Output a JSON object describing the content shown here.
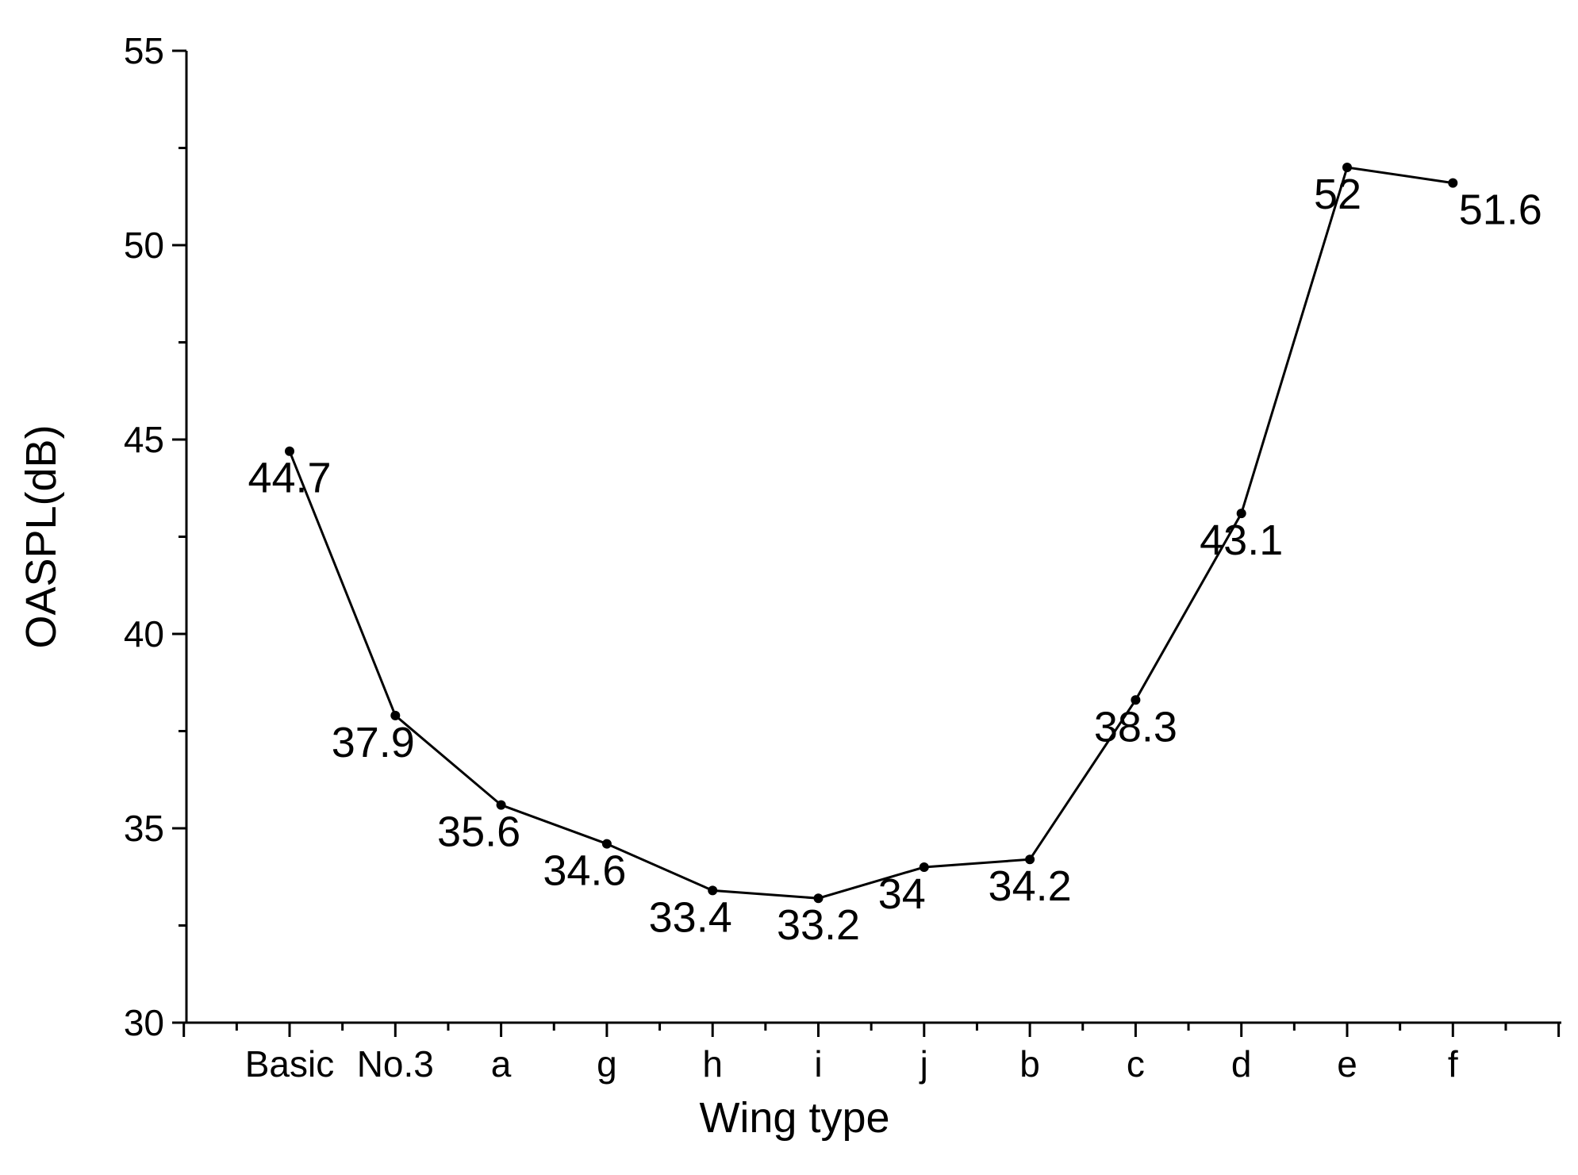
{
  "chart_data": {
    "type": "line",
    "title": "",
    "xlabel": "Wing type",
    "ylabel": "OASPL(dB)",
    "categories": [
      "Basic",
      "No.3",
      "a",
      "g",
      "h",
      "i",
      "j",
      "b",
      "c",
      "d",
      "e",
      "f"
    ],
    "series": [
      {
        "values": [
          44.7,
          37.9,
          35.6,
          34.6,
          33.4,
          33.2,
          34,
          34.2,
          38.3,
          43.1,
          52,
          51.6
        ],
        "data_labels": [
          "44.7",
          "37.9",
          "35.6",
          "34.6",
          "33.4",
          "33.2",
          "34",
          "34.2",
          "38.3",
          "43.1",
          "52",
          "51.6"
        ],
        "color": "#000000"
      }
    ],
    "ylim": [
      30,
      55
    ],
    "yticks": [
      30,
      35,
      40,
      45,
      50,
      55
    ],
    "ytick_labels": [
      "30",
      "35",
      "40",
      "45",
      "50",
      "55"
    ],
    "grid": false,
    "legend": "none"
  }
}
